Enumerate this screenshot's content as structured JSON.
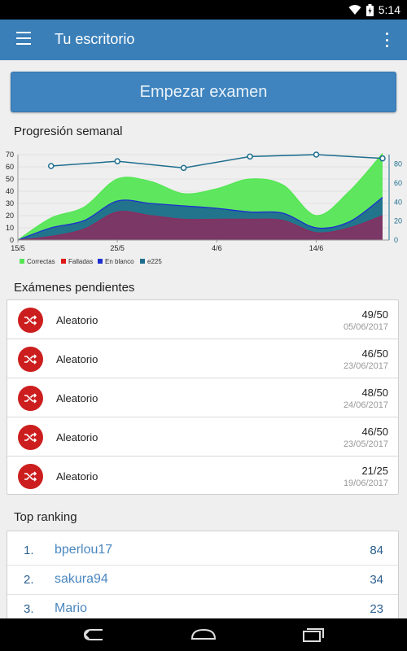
{
  "status_bar": {
    "time": "5:14"
  },
  "app_bar": {
    "title": "Tu escritorio"
  },
  "start_button": {
    "label": "Empezar examen"
  },
  "weekly": {
    "title": "Progresión semanal",
    "legend": [
      "Correctas",
      "Falladas",
      "En blanco",
      "e225"
    ],
    "colors": {
      "correctas": "#55e655",
      "falladas": "#8b2d5f",
      "en_blanco": "#1d2fd1",
      "e225": "#1f6e8e"
    }
  },
  "chart_data": {
    "type": "area",
    "x_labels": [
      "15/5",
      "25/5",
      "4/6",
      "14/6"
    ],
    "left_axis": {
      "ylim": [
        0,
        70
      ],
      "ticks": [
        0,
        10,
        20,
        30,
        40,
        50,
        60,
        70
      ]
    },
    "right_axis": {
      "ylim": [
        0,
        90
      ],
      "ticks": [
        0,
        20,
        40,
        60,
        80
      ]
    },
    "series": [
      {
        "name": "Correctas",
        "axis": "left",
        "points": [
          [
            0,
            0
          ],
          [
            1,
            18
          ],
          [
            2,
            27
          ],
          [
            3,
            50
          ],
          [
            4,
            48
          ],
          [
            5,
            38
          ],
          [
            6,
            42
          ],
          [
            7,
            50
          ],
          [
            8,
            45
          ],
          [
            9,
            20
          ],
          [
            10,
            40
          ],
          [
            11,
            71
          ]
        ]
      },
      {
        "name": "En blanco",
        "axis": "left",
        "points": [
          [
            0,
            0
          ],
          [
            1,
            10
          ],
          [
            2,
            16
          ],
          [
            3,
            32
          ],
          [
            4,
            30
          ],
          [
            5,
            28
          ],
          [
            6,
            26
          ],
          [
            7,
            23
          ],
          [
            8,
            22
          ],
          [
            9,
            10
          ],
          [
            10,
            15
          ],
          [
            11,
            35
          ]
        ]
      },
      {
        "name": "Falladas",
        "axis": "left",
        "points": [
          [
            0,
            0
          ],
          [
            1,
            3
          ],
          [
            2,
            9
          ],
          [
            3,
            23
          ],
          [
            4,
            20
          ],
          [
            5,
            17
          ],
          [
            6,
            17
          ],
          [
            7,
            17
          ],
          [
            8,
            16
          ],
          [
            9,
            6
          ],
          [
            10,
            10
          ],
          [
            11,
            20
          ]
        ]
      },
      {
        "name": "e225",
        "axis": "right",
        "type": "line",
        "points": [
          [
            1,
            78
          ],
          [
            3,
            83
          ],
          [
            5,
            76
          ],
          [
            7,
            88
          ],
          [
            9,
            90
          ],
          [
            11,
            86
          ]
        ]
      }
    ]
  },
  "pending": {
    "title": "Exámenes pendientes",
    "items": [
      {
        "name": "Aleatorio",
        "score": "49/50",
        "date": "05/06/2017"
      },
      {
        "name": "Aleatorio",
        "score": "46/50",
        "date": "23/06/2017"
      },
      {
        "name": "Aleatorio",
        "score": "48/50",
        "date": "24/06/2017"
      },
      {
        "name": "Aleatorio",
        "score": "46/50",
        "date": "23/05/2017"
      },
      {
        "name": "Aleatorio",
        "score": "21/25",
        "date": "19/06/2017"
      }
    ]
  },
  "ranking": {
    "title": "Top ranking",
    "items": [
      {
        "pos": "1.",
        "user": "bperlou17",
        "points": "84"
      },
      {
        "pos": "2.",
        "user": "sakura94",
        "points": "34"
      },
      {
        "pos": "3.",
        "user": "Mario",
        "points": "23"
      }
    ]
  }
}
